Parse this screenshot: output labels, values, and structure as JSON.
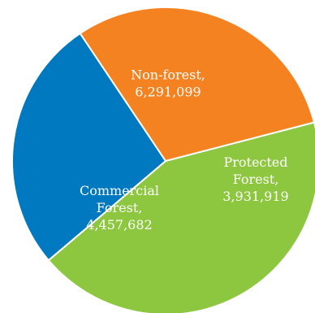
{
  "chart_data": {
    "type": "pie",
    "slices": [
      {
        "label_lines": [
          "Non-forest,",
          "6,291,099"
        ],
        "value": 6291099,
        "color": "#8dc63f"
      },
      {
        "label_lines": [
          "Protected",
          "Forest,",
          "3,931,919"
        ],
        "value": 3931919,
        "color": "#0079c1"
      },
      {
        "label_lines": [
          "Commercial",
          "Forest,",
          "4,457,682"
        ],
        "value": 4457682,
        "color": "#f58220"
      }
    ]
  }
}
